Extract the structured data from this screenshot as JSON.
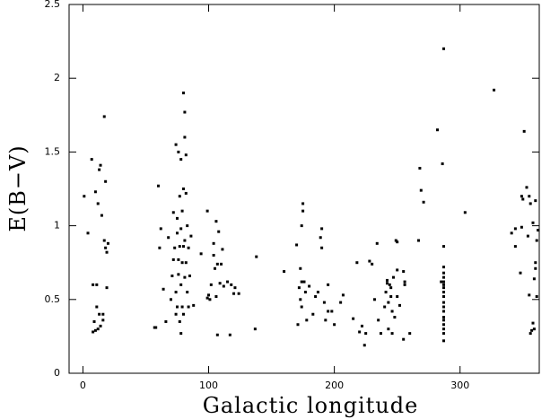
{
  "chart_data": {
    "type": "scatter",
    "x_label": "Galactic longitude",
    "y_label": "E(B−V)",
    "x": [
      1,
      4,
      7,
      8,
      9,
      8,
      10,
      10,
      11,
      11,
      12,
      12,
      13,
      13,
      14,
      14,
      15,
      16,
      16,
      17,
      17,
      18,
      18,
      19,
      19,
      20,
      57,
      58,
      60,
      61,
      62,
      64,
      66,
      68,
      70,
      71,
      72,
      72,
      73,
      74,
      74,
      74,
      75,
      75,
      75,
      76,
      76,
      76,
      77,
      77,
      77,
      78,
      78,
      78,
      78,
      79,
      79,
      79,
      80,
      80,
      80,
      80,
      81,
      81,
      81,
      81,
      82,
      82,
      82,
      83,
      83,
      84,
      84,
      85,
      86,
      88,
      94,
      99,
      99,
      100,
      101,
      102,
      104,
      104,
      105,
      106,
      106,
      107,
      107,
      108,
      109,
      110,
      111,
      112,
      115,
      117,
      118,
      120,
      121,
      124,
      137,
      138,
      160,
      170,
      171,
      172,
      173,
      173,
      174,
      174,
      174,
      175,
      175,
      176,
      177,
      178,
      180,
      183,
      185,
      187,
      189,
      190,
      190,
      192,
      193,
      195,
      195,
      198,
      200,
      205,
      207,
      215,
      218,
      220,
      222,
      224,
      225,
      228,
      230,
      232,
      234,
      235,
      237,
      240,
      241,
      242,
      242,
      243,
      243,
      244,
      245,
      245,
      246,
      246,
      247,
      248,
      249,
      250,
      250,
      250,
      252,
      255,
      255,
      256,
      256,
      260,
      267,
      268,
      269,
      271,
      282,
      285,
      286,
      287,
      287,
      287,
      287,
      287,
      287,
      287,
      287,
      287,
      287,
      287,
      287,
      287,
      287,
      287,
      287,
      287,
      287,
      287,
      304,
      327,
      341,
      344,
      344,
      348,
      349,
      349,
      350,
      351,
      353,
      354,
      355,
      355,
      356,
      356,
      357,
      358,
      358,
      359,
      359,
      360,
      360,
      360,
      361,
      361,
      362
    ],
    "values": [
      1.2,
      0.95,
      1.45,
      0.28,
      0.35,
      0.6,
      0.29,
      1.23,
      0.45,
      0.6,
      1.15,
      0.3,
      0.4,
      1.38,
      1.41,
      0.32,
      1.07,
      0.36,
      0.4,
      0.9,
      1.74,
      1.3,
      0.85,
      0.82,
      0.58,
      0.88,
      0.31,
      0.31,
      1.27,
      0.85,
      0.98,
      0.57,
      0.35,
      0.92,
      0.5,
      0.66,
      0.77,
      1.09,
      0.85,
      0.4,
      0.55,
      1.55,
      1.05,
      0.45,
      0.95,
      0.77,
      0.67,
      1.5,
      1.2,
      0.35,
      0.86,
      0.98,
      0.6,
      1.45,
      0.27,
      0.45,
      0.75,
      1.1,
      0.86,
      1.9,
      1.25,
      0.4,
      0.9,
      1.77,
      1.6,
      0.65,
      1.48,
      1.22,
      0.75,
      1.0,
      0.55,
      0.85,
      0.45,
      0.66,
      0.93,
      0.46,
      0.81,
      1.1,
      0.51,
      0.53,
      0.5,
      0.6,
      0.88,
      0.8,
      0.71,
      0.52,
      1.03,
      0.26,
      0.74,
      0.96,
      0.61,
      0.74,
      0.84,
      0.59,
      0.62,
      0.26,
      0.6,
      0.54,
      0.58,
      0.54,
      0.3,
      0.79,
      0.69,
      0.87,
      0.33,
      0.58,
      0.71,
      0.5,
      1.0,
      0.62,
      0.45,
      1.15,
      1.1,
      0.62,
      0.55,
      0.36,
      0.59,
      0.4,
      0.52,
      0.55,
      0.92,
      0.98,
      0.85,
      0.48,
      0.36,
      0.6,
      0.42,
      0.42,
      0.33,
      0.48,
      0.53,
      0.37,
      0.75,
      0.28,
      0.32,
      0.19,
      0.27,
      0.76,
      0.74,
      0.5,
      0.88,
      0.36,
      0.27,
      0.45,
      0.55,
      0.61,
      0.63,
      0.3,
      0.48,
      0.6,
      0.58,
      0.52,
      0.42,
      0.27,
      0.65,
      0.38,
      0.9,
      0.89,
      0.52,
      0.7,
      0.46,
      0.23,
      0.69,
      0.62,
      0.6,
      0.27,
      0.9,
      1.39,
      1.24,
      1.16,
      1.65,
      0.62,
      1.42,
      2.2,
      0.22,
      0.27,
      0.3,
      0.33,
      0.36,
      0.38,
      0.42,
      0.45,
      0.48,
      0.52,
      0.55,
      0.58,
      0.6,
      0.62,
      0.65,
      0.68,
      0.72,
      0.86,
      1.09,
      1.92,
      0.95,
      0.86,
      0.98,
      0.68,
      0.99,
      1.2,
      1.18,
      1.64,
      1.26,
      0.93,
      1.2,
      0.53,
      0.27,
      1.15,
      0.29,
      0.34,
      1.02,
      0.3,
      0.64,
      1.17,
      0.75,
      0.71,
      0.52,
      0.9,
      0.97
    ],
    "color": "#000000",
    "xlim": [
      -11,
      363
    ],
    "ylim": [
      0,
      2.5
    ],
    "xticks": [
      0,
      100,
      200,
      300
    ],
    "yticks": [
      0,
      0.5,
      1,
      1.5,
      2,
      2.5
    ]
  }
}
